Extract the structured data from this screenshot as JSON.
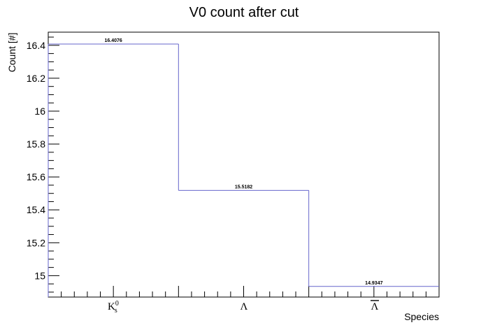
{
  "chart_data": {
    "type": "bar",
    "title": "V0 count after cut",
    "xlabel": "Species",
    "ylabel": "Count [#]",
    "categories": [
      "Ks0",
      "Λ",
      "Λ̄"
    ],
    "values": [
      16.4076,
      15.5182,
      14.9347
    ],
    "value_labels": [
      "16.4076",
      "15.5182",
      "14.9347"
    ],
    "ylim": [
      14.87,
      16.48
    ],
    "yticks": [
      15,
      15.2,
      15.4,
      15.6,
      15.8,
      16,
      16.2,
      16.4
    ],
    "ytick_labels": [
      "15",
      "15.2",
      "15.4",
      "15.6",
      "15.8",
      "16",
      "16.2",
      "16.4"
    ],
    "grid": false,
    "series_color": "#6666cc",
    "category_glyphs": {
      "k_base": "K",
      "k_sup": "0",
      "k_sub": "s",
      "lambda": "Λ",
      "antilambda": "Λ"
    }
  }
}
